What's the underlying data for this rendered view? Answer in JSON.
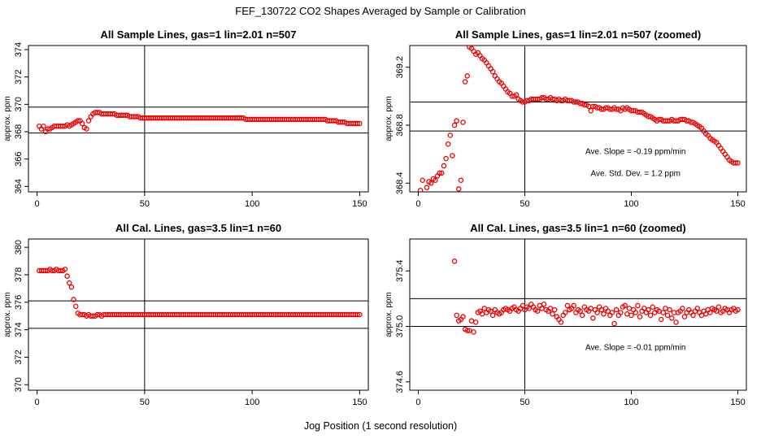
{
  "figure": {
    "title": "FEF_130722  CO2 Shapes Averaged by Sample or Calibration",
    "xlabel": "Jog Position (1 second resolution)"
  },
  "chart_data": [
    {
      "type": "scatter",
      "title": "All Sample Lines, gas=1 lin=2.01 n=507",
      "ylabel": "approx. ppm",
      "xlim": [
        -4,
        154
      ],
      "ylim": [
        363.6,
        374.3
      ],
      "xticks": [
        0,
        50,
        100,
        150
      ],
      "xtick_labels": [
        "0",
        "50",
        "100",
        "150"
      ],
      "yticks": [
        364,
        366,
        368,
        370,
        372,
        374
      ],
      "ytick_labels": [
        "364",
        "366",
        "368",
        "370",
        "372",
        "374"
      ],
      "hlines": [
        369.8,
        367.9
      ],
      "vlines": [
        50
      ],
      "annotations": [],
      "marker_color": "#ee0000",
      "x_start": 1,
      "y": [
        368.4,
        368.2,
        368.4,
        368.0,
        368.2,
        368.2,
        368.3,
        368.4,
        368.4,
        368.4,
        368.4,
        368.4,
        368.4,
        368.5,
        368.4,
        368.5,
        368.6,
        368.7,
        368.8,
        368.8,
        368.6,
        368.3,
        368.2,
        368.8,
        369.1,
        369.3,
        369.4,
        369.4,
        369.4,
        369.3,
        369.3,
        369.3,
        369.3,
        369.3,
        369.3,
        369.3,
        369.2,
        369.2,
        369.2,
        369.2,
        369.2,
        369.2,
        369.1,
        369.1,
        369.1,
        369.1,
        369.1,
        369.0,
        369.0,
        369.0,
        369.0,
        369.0,
        369.0,
        369.0,
        369.0,
        369.0,
        369.0,
        369.0,
        369.0,
        369.0,
        369.0,
        369.0,
        369.0,
        369.0,
        369.0,
        369.0,
        369.0,
        369.0,
        369.0,
        369.0,
        369.0,
        369.0,
        369.0,
        369.0,
        369.0,
        369.0,
        369.0,
        369.0,
        369.0,
        369.0,
        369.0,
        369.0,
        369.0,
        369.0,
        369.0,
        369.0,
        369.0,
        369.0,
        369.0,
        369.0,
        369.0,
        369.0,
        369.0,
        369.0,
        369.0,
        369.0,
        368.9,
        368.9,
        368.9,
        368.9,
        368.9,
        368.9,
        368.9,
        368.9,
        368.9,
        368.9,
        368.9,
        368.9,
        368.9,
        368.9,
        368.9,
        368.9,
        368.9,
        368.9,
        368.9,
        368.9,
        368.9,
        368.9,
        368.9,
        368.9,
        368.9,
        368.9,
        368.9,
        368.9,
        368.9,
        368.9,
        368.9,
        368.9,
        368.9,
        368.9,
        368.9,
        368.9,
        368.9,
        368.9,
        368.8,
        368.8,
        368.8,
        368.8,
        368.8,
        368.7,
        368.7,
        368.7,
        368.7,
        368.6,
        368.6,
        368.6,
        368.6,
        368.6,
        368.6,
        368.6
      ]
    },
    {
      "type": "scatter",
      "title": "All Sample Lines, gas=1 lin=2.01 n=507 (zoomed)",
      "ylabel": "approx. ppm",
      "xlim": [
        -4,
        154
      ],
      "ylim": [
        368.34,
        369.35
      ],
      "xticks": [
        0,
        50,
        100,
        150
      ],
      "xtick_labels": [
        "0",
        "50",
        "100",
        "150"
      ],
      "yticks": [
        368.4,
        368.8,
        369.2
      ],
      "ytick_labels": [
        "368.4",
        "368.8",
        "369.2"
      ],
      "hlines": [
        368.96,
        368.76
      ],
      "vlines": [
        50
      ],
      "annotations": [
        {
          "text": "Ave. Slope =  -0.19  ppm/min",
          "x": 102,
          "y": 368.6
        },
        {
          "text": "Ave. Std. Dev. =  1.2  ppm",
          "x": 102,
          "y": 368.45
        }
      ],
      "marker_color": "#ee0000",
      "x_start": 1,
      "y": [
        368.35,
        368.42,
        368.3,
        368.37,
        368.41,
        368.4,
        368.43,
        368.42,
        368.45,
        368.47,
        368.47,
        368.52,
        368.57,
        368.67,
        368.73,
        368.59,
        368.8,
        368.83,
        368.36,
        368.42,
        368.82,
        369.1,
        369.14,
        369.34,
        369.33,
        369.31,
        369.29,
        369.3,
        369.28,
        369.26,
        369.25,
        369.23,
        369.21,
        369.19,
        369.17,
        369.14,
        369.12,
        369.1,
        369.09,
        369.07,
        369.05,
        369.03,
        369.02,
        369.0,
        369.0,
        369.01,
        368.98,
        368.97,
        368.96,
        368.96,
        368.97,
        368.97,
        368.98,
        368.98,
        368.98,
        368.98,
        368.98,
        368.99,
        368.99,
        368.98,
        368.98,
        368.99,
        368.98,
        368.98,
        368.97,
        368.98,
        368.97,
        368.97,
        368.98,
        368.97,
        368.97,
        368.97,
        368.96,
        368.96,
        368.96,
        368.95,
        368.95,
        368.94,
        368.94,
        368.93,
        368.9,
        368.93,
        368.93,
        368.92,
        368.92,
        368.91,
        368.91,
        368.92,
        368.92,
        368.91,
        368.91,
        368.92,
        368.91,
        368.91,
        368.9,
        368.92,
        368.91,
        368.92,
        368.91,
        368.9,
        368.9,
        368.9,
        368.89,
        368.89,
        368.89,
        368.88,
        368.87,
        368.86,
        368.86,
        368.85,
        368.84,
        368.83,
        368.84,
        368.84,
        368.83,
        368.83,
        368.83,
        368.83,
        368.84,
        368.83,
        368.83,
        368.83,
        368.84,
        368.84,
        368.84,
        368.83,
        368.83,
        368.82,
        368.82,
        368.81,
        368.8,
        368.79,
        368.78,
        368.76,
        368.74,
        368.73,
        368.71,
        368.7,
        368.69,
        368.68,
        368.66,
        368.64,
        368.62,
        368.6,
        368.58,
        368.56,
        368.55,
        368.54,
        368.54,
        368.54
      ]
    },
    {
      "type": "scatter",
      "title": "All Cal. Lines, gas=3.5 lin=1 n=60",
      "ylabel": "approx. ppm",
      "xlim": [
        -4,
        154
      ],
      "ylim": [
        369.6,
        380.6
      ],
      "xticks": [
        0,
        50,
        100,
        150
      ],
      "xtick_labels": [
        "0",
        "50",
        "100",
        "150"
      ],
      "yticks": [
        370,
        372,
        374,
        376,
        378,
        380
      ],
      "ytick_labels": [
        "370",
        "372",
        "374",
        "376",
        "378",
        "380"
      ],
      "hlines": [
        376.1,
        374.1
      ],
      "vlines": [
        50
      ],
      "annotations": [],
      "marker_color": "#ee0000",
      "x_start": 1,
      "y": [
        378.3,
        378.3,
        378.3,
        378.3,
        378.3,
        378.4,
        378.3,
        378.3,
        378.4,
        378.3,
        378.3,
        378.3,
        378.4,
        377.9,
        377.4,
        377.1,
        376.2,
        375.7,
        375.2,
        375.1,
        375.1,
        375.1,
        375.0,
        375.1,
        375.0,
        375.0,
        375.0,
        375.1,
        375.1,
        375.0,
        375.1,
        375.1,
        375.1,
        375.1,
        375.1,
        375.1,
        375.1,
        375.1,
        375.1,
        375.1,
        375.1,
        375.1,
        375.1,
        375.1,
        375.1,
        375.1,
        375.1,
        375.1,
        375.1,
        375.1,
        375.1,
        375.1,
        375.1,
        375.1,
        375.1,
        375.1,
        375.1,
        375.1,
        375.1,
        375.1,
        375.1,
        375.1,
        375.1,
        375.1,
        375.1,
        375.1,
        375.1,
        375.1,
        375.1,
        375.1,
        375.1,
        375.1,
        375.1,
        375.1,
        375.1,
        375.1,
        375.1,
        375.1,
        375.1,
        375.1,
        375.1,
        375.1,
        375.1,
        375.1,
        375.1,
        375.1,
        375.1,
        375.1,
        375.1,
        375.1,
        375.1,
        375.1,
        375.1,
        375.1,
        375.1,
        375.1,
        375.1,
        375.1,
        375.1,
        375.1,
        375.1,
        375.1,
        375.1,
        375.1,
        375.1,
        375.1,
        375.1,
        375.1,
        375.1,
        375.1,
        375.1,
        375.1,
        375.1,
        375.1,
        375.1,
        375.1,
        375.1,
        375.1,
        375.1,
        375.1,
        375.1,
        375.1,
        375.1,
        375.1,
        375.1,
        375.1,
        375.1,
        375.1,
        375.1,
        375.1,
        375.1,
        375.1,
        375.1,
        375.1,
        375.1,
        375.1,
        375.1,
        375.1,
        375.1,
        375.1,
        375.1,
        375.1,
        375.1,
        375.1,
        375.1,
        375.1,
        375.1,
        375.1,
        375.1,
        375.1
      ]
    },
    {
      "type": "scatter",
      "title": "All Cal. Lines, gas=3.5 lin=1 n=60 (zoomed)",
      "ylabel": "approx. ppm",
      "xlim": [
        -4,
        154
      ],
      "ylim": [
        374.54,
        375.63
      ],
      "xticks": [
        0,
        50,
        100,
        150
      ],
      "xtick_labels": [
        "0",
        "50",
        "100",
        "150"
      ],
      "yticks": [
        374.6,
        375.0,
        375.4
      ],
      "ytick_labels": [
        "374.6",
        "375.0",
        "375.4"
      ],
      "hlines": [
        375.2,
        375.0
      ],
      "vlines": [
        50
      ],
      "annotations": [
        {
          "text": "Ave. Slope =  -0.01  ppm/min",
          "x": 102,
          "y": 374.83
        }
      ],
      "marker_color": "#ee0000",
      "x_start": 17,
      "y": [
        375.47,
        375.08,
        375.04,
        375.05,
        375.07,
        374.98,
        374.97,
        374.97,
        375.04,
        374.96,
        375.03,
        375.1,
        375.11,
        375.09,
        375.13,
        375.1,
        375.12,
        375.11,
        375.08,
        375.12,
        375.1,
        375.09,
        375.1,
        375.12,
        375.13,
        375.12,
        375.11,
        375.13,
        375.14,
        375.12,
        375.11,
        375.13,
        375.15,
        375.12,
        375.14,
        375.13,
        375.16,
        375.14,
        375.12,
        375.11,
        375.15,
        375.13,
        375.16,
        375.12,
        375.11,
        375.13,
        375.09,
        375.12,
        375.07,
        375.05,
        375.03,
        375.08,
        375.1,
        375.15,
        375.12,
        375.13,
        375.15,
        375.1,
        375.12,
        375.11,
        375.08,
        375.14,
        375.12,
        375.11,
        375.13,
        375.06,
        375.12,
        375.1,
        375.14,
        375.12,
        375.09,
        375.13,
        375.11,
        375.08,
        375.1,
        375.02,
        375.12,
        375.08,
        375.1,
        375.14,
        375.15,
        375.09,
        375.13,
        375.08,
        375.12,
        375.1,
        375.15,
        375.07,
        375.11,
        375.13,
        375.1,
        375.12,
        375.08,
        375.14,
        375.1,
        375.12,
        375.11,
        375.05,
        375.1,
        375.13,
        375.08,
        375.12,
        375.06,
        375.1,
        375.03,
        375.1,
        375.11,
        375.13,
        375.07,
        375.1,
        375.12,
        375.1,
        375.08,
        375.11,
        375.13,
        375.1,
        375.08,
        375.11,
        375.09,
        375.12,
        375.1,
        375.13,
        375.12,
        375.11,
        375.14,
        375.1,
        375.11,
        375.13,
        375.12,
        375.1,
        375.12,
        375.13,
        375.11,
        375.12
      ]
    }
  ]
}
